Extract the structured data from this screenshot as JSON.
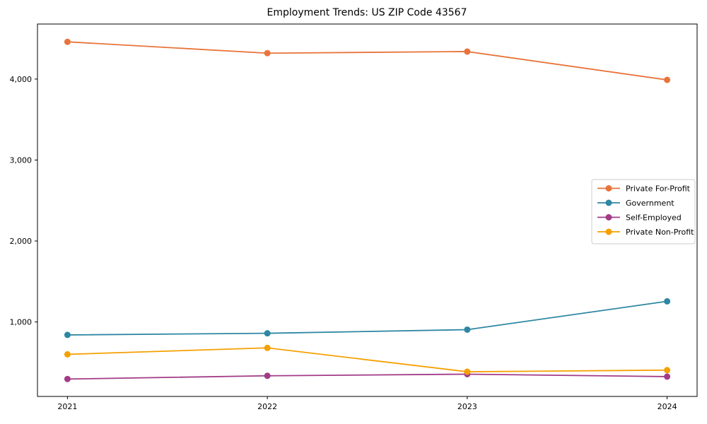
{
  "figure": {
    "background": "#ffffff",
    "spine_color": "#000000",
    "legend_border_color": "#cccccc",
    "legend_background": "#ffffff"
  },
  "chart_data": {
    "type": "line",
    "title": "Employment Trends: US ZIP Code 43567",
    "xlabel": "",
    "ylabel": "",
    "grid": false,
    "legend_position": "center-right",
    "x": [
      2021,
      2022,
      2023,
      2024
    ],
    "x_tick_labels": [
      "2021",
      "2022",
      "2023",
      "2024"
    ],
    "y_ticks": [
      1000,
      2000,
      3000,
      4000
    ],
    "y_tick_labels": [
      "1,000",
      "2,000",
      "3,000",
      "4,000"
    ],
    "xlim": [
      2020.85,
      2024.15
    ],
    "ylim": [
      80,
      4680
    ],
    "series": [
      {
        "name": "Private For-Profit",
        "color": "#E8743B",
        "values": [
          4460,
          4320,
          4340,
          3990
        ]
      },
      {
        "name": "Government",
        "color": "#2E87A3",
        "values": [
          840,
          860,
          905,
          1255
        ]
      },
      {
        "name": "Self-Employed",
        "color": "#A23B87",
        "values": [
          295,
          335,
          355,
          325
        ]
      },
      {
        "name": "Private Non-Profit",
        "color": "#F5A003",
        "values": [
          600,
          680,
          385,
          405
        ]
      }
    ]
  }
}
